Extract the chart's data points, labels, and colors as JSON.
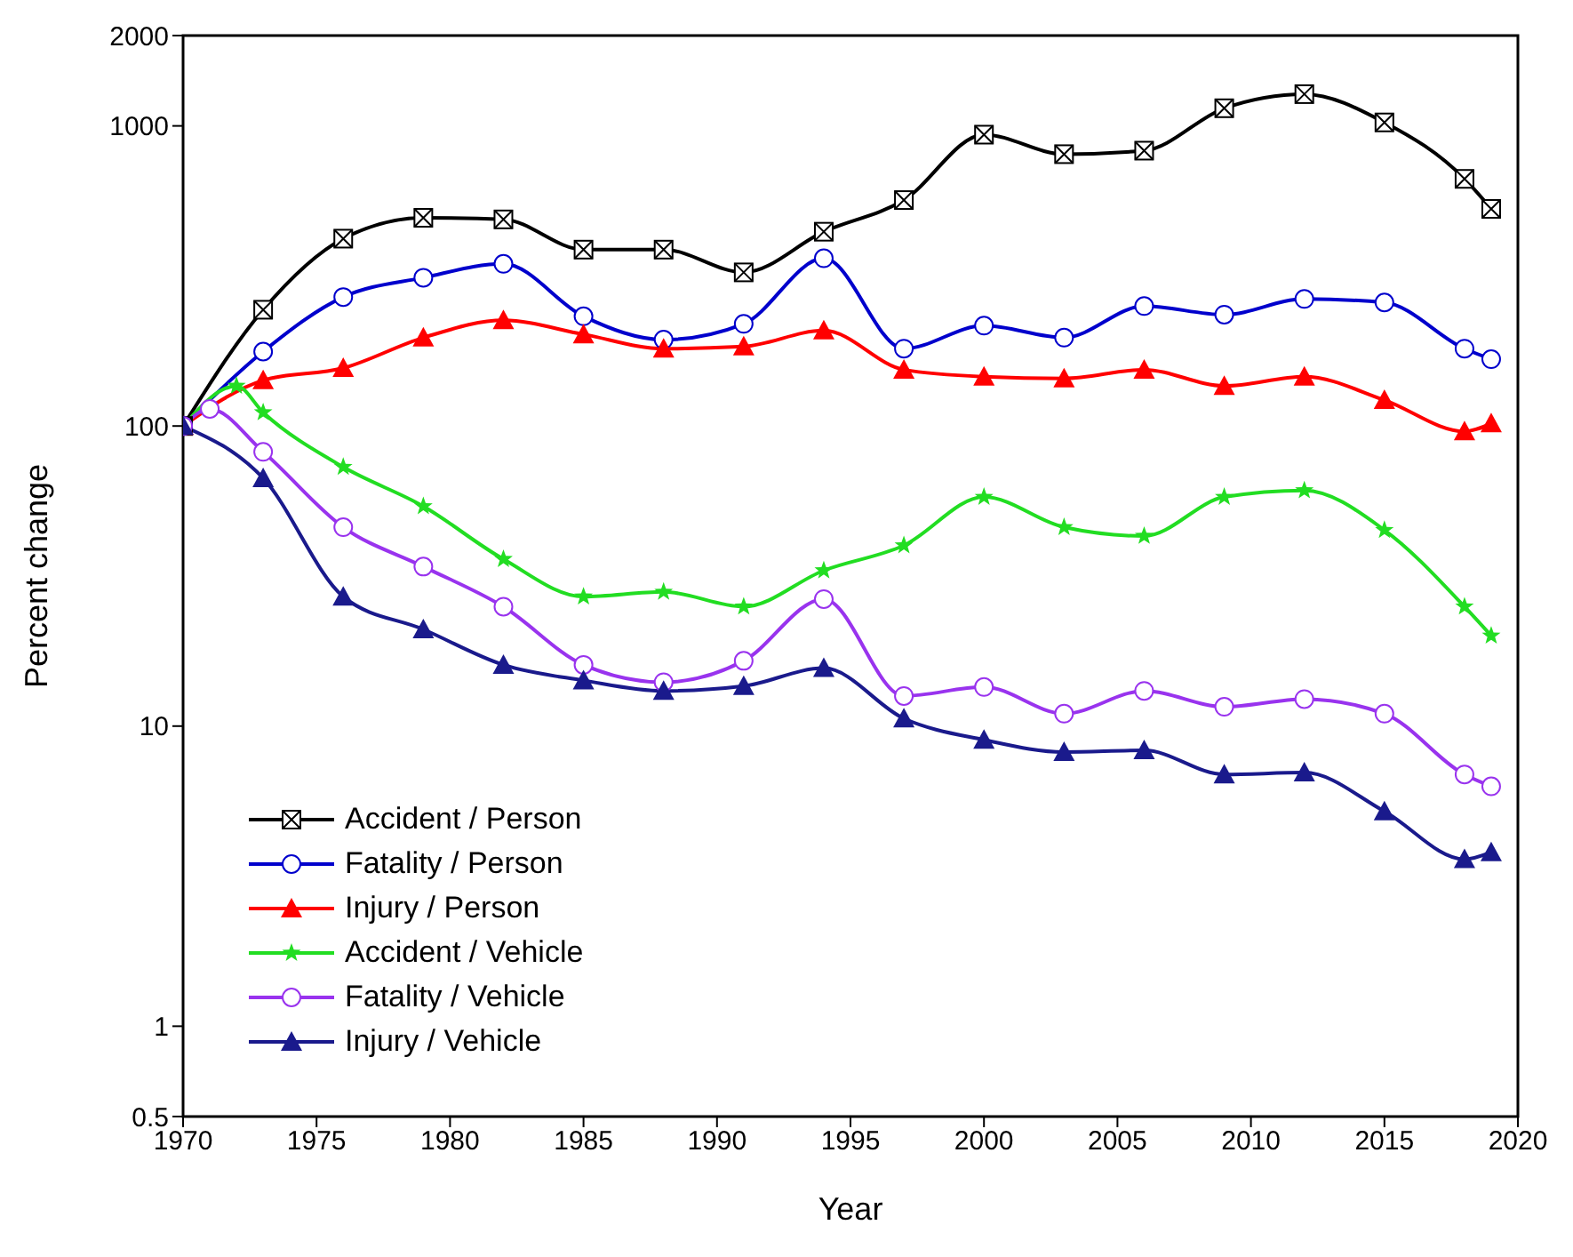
{
  "chart_data": {
    "type": "line",
    "xlabel": "Year",
    "ylabel": "Percent change",
    "log": "y",
    "xlim": [
      1970,
      2020
    ],
    "xticks": [
      1970,
      1975,
      1980,
      1985,
      1990,
      1995,
      2000,
      2005,
      2010,
      2015,
      2020
    ],
    "ylim": [
      0.5,
      2000
    ],
    "yticks": [
      0.5,
      1,
      10,
      100,
      1000,
      2000
    ],
    "grid": false,
    "legend": "bottom left",
    "line_style": "solid",
    "x": [
      1970,
      1973,
      1976,
      1979,
      1982,
      1985,
      1988,
      1991,
      1994,
      1997,
      2000,
      2003,
      2006,
      2009,
      2012,
      2015,
      2018,
      2019
    ],
    "series": [
      {
        "name": "Accident / Person",
        "color": "#000000",
        "marker": "square",
        "values": [
          100,
          244,
          421,
          494,
          488,
          387,
          387,
          325,
          444,
          566,
          935,
          805,
          827,
          1145,
          1276,
          1027,
          666,
          529
        ]
      },
      {
        "name": "Fatality / Person",
        "color": "#0000cc",
        "marker": "circle",
        "values": [
          100,
          177,
          269,
          312,
          347,
          232,
          194,
          219,
          362,
          181,
          216,
          197,
          251,
          235,
          265,
          258,
          181,
          167
        ]
      },
      {
        "name": "Injury / Person",
        "color": "#ff0000",
        "marker": "triangle",
        "values": [
          100,
          142,
          156,
          197,
          225,
          202,
          181,
          184,
          208,
          154,
          146,
          144,
          154,
          136,
          146,
          122,
          96,
          102
        ]
      },
      {
        "name": "Accident / Vehicle",
        "color": "#22dd22",
        "marker": "star",
        "x": [
          1970,
          1972,
          1973,
          1976,
          1979,
          1982,
          1985,
          1988,
          1991,
          1994,
          1997,
          2000,
          2003,
          2006,
          2009,
          2012,
          2015,
          2018,
          2019
        ],
        "values": [
          100,
          136,
          111,
          73,
          54,
          36,
          27,
          28,
          25,
          33,
          40,
          58,
          46,
          43,
          58,
          61,
          45,
          25,
          20
        ]
      },
      {
        "name": "Fatality / Vehicle",
        "color": "#9933ee",
        "marker": "circle",
        "x": [
          1970,
          1971,
          1973,
          1976,
          1979,
          1982,
          1985,
          1988,
          1991,
          1994,
          1997,
          2000,
          2003,
          2006,
          2009,
          2012,
          2015,
          2018,
          2019
        ],
        "values": [
          100,
          114,
          82,
          46,
          34,
          25,
          16,
          14,
          16.5,
          26.5,
          12.6,
          13.5,
          11,
          13.1,
          11.6,
          12.3,
          11,
          6.9,
          6.3
        ]
      },
      {
        "name": "Injury / Vehicle",
        "color": "#1a1a8c",
        "marker": "triangle",
        "values": [
          100,
          67,
          27,
          21,
          16,
          14.2,
          13.1,
          13.6,
          15.6,
          10.6,
          9,
          8.2,
          8.3,
          6.9,
          7,
          5.2,
          3.6,
          3.8
        ]
      }
    ]
  }
}
